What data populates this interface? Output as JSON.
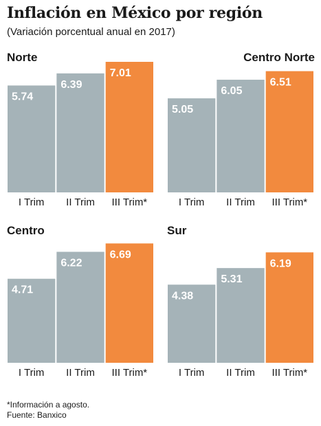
{
  "title": "Inflación en México por región",
  "subtitle": "(Variación porcentual anual en 2017)",
  "colors": {
    "base": "#a5b3b8",
    "highlight": "#f28a3e"
  },
  "chart_data": [
    {
      "type": "bar",
      "title": "Norte",
      "categories": [
        "I Trim",
        "II Trim",
        "III Trim*"
      ],
      "values": [
        5.74,
        6.39,
        7.01
      ],
      "ylim": [
        0,
        7.01
      ],
      "grid": false
    },
    {
      "type": "bar",
      "title": "Centro Norte",
      "categories": [
        "I Trim",
        "II Trim",
        "III Trim*"
      ],
      "values": [
        5.05,
        6.05,
        6.51
      ],
      "ylim": [
        0,
        7.01
      ],
      "grid": false
    },
    {
      "type": "bar",
      "title": "Centro",
      "categories": [
        "I Trim",
        "II Trim",
        "III Trim*"
      ],
      "values": [
        4.71,
        6.22,
        6.69
      ],
      "ylim": [
        0,
        7.01
      ],
      "grid": false
    },
    {
      "type": "bar",
      "title": "Sur",
      "categories": [
        "I Trim",
        "II Trim",
        "III Trim*"
      ],
      "values": [
        4.38,
        5.31,
        6.19
      ],
      "ylim": [
        0,
        7.01
      ],
      "grid": false
    }
  ],
  "footnote": "*Información a agosto.",
  "source": "Fuente: Banxico"
}
